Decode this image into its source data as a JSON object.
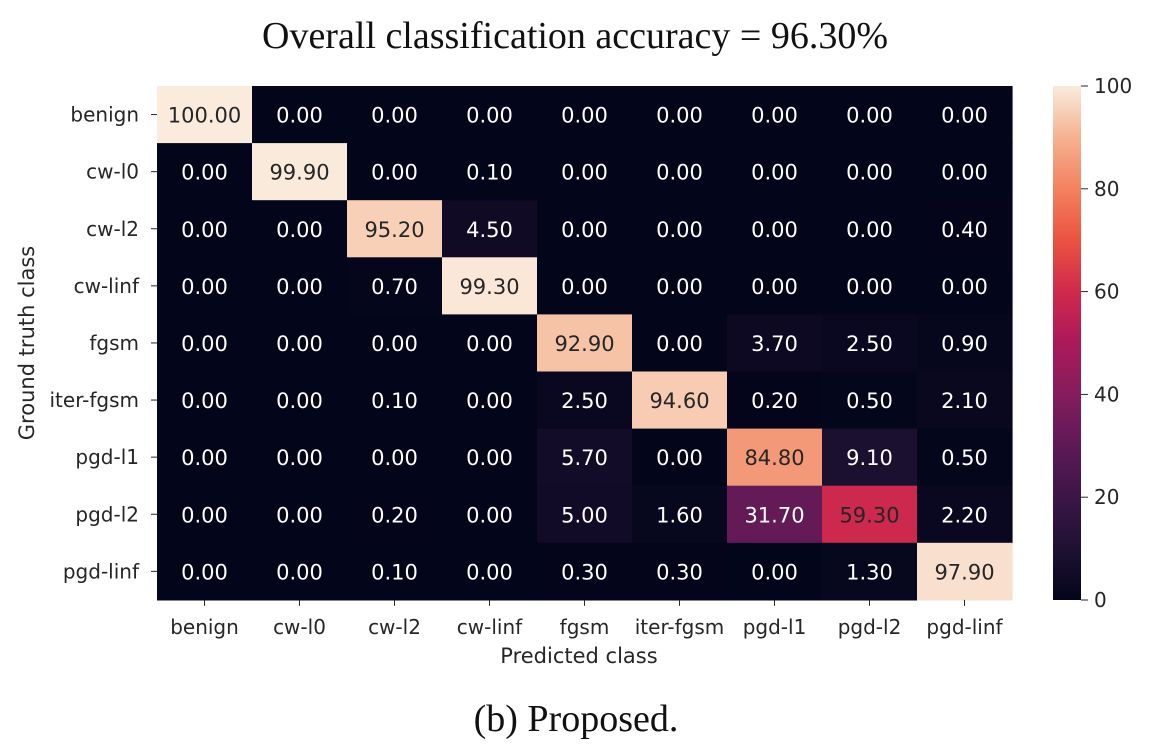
{
  "chart_data": {
    "type": "heatmap",
    "title": "Overall classification accuracy = 96.30%",
    "caption": "(b) Proposed.",
    "xlabel": "Predicted class",
    "ylabel": "Ground truth class",
    "x_categories": [
      "benign",
      "cw-l0",
      "cw-l2",
      "cw-linf",
      "fgsm",
      "iter-fgsm",
      "pgd-l1",
      "pgd-l2",
      "pgd-linf"
    ],
    "y_categories": [
      "benign",
      "cw-l0",
      "cw-l2",
      "cw-linf",
      "fgsm",
      "iter-fgsm",
      "pgd-l1",
      "pgd-l2",
      "pgd-linf"
    ],
    "values": [
      [
        100.0,
        0.0,
        0.0,
        0.0,
        0.0,
        0.0,
        0.0,
        0.0,
        0.0
      ],
      [
        0.0,
        99.9,
        0.0,
        0.1,
        0.0,
        0.0,
        0.0,
        0.0,
        0.0
      ],
      [
        0.0,
        0.0,
        95.2,
        4.5,
        0.0,
        0.0,
        0.0,
        0.0,
        0.4
      ],
      [
        0.0,
        0.0,
        0.7,
        99.3,
        0.0,
        0.0,
        0.0,
        0.0,
        0.0
      ],
      [
        0.0,
        0.0,
        0.0,
        0.0,
        92.9,
        0.0,
        3.7,
        2.5,
        0.9
      ],
      [
        0.0,
        0.0,
        0.1,
        0.0,
        2.5,
        94.6,
        0.2,
        0.5,
        2.1
      ],
      [
        0.0,
        0.0,
        0.0,
        0.0,
        5.7,
        0.0,
        84.8,
        9.1,
        0.5
      ],
      [
        0.0,
        0.0,
        0.2,
        0.0,
        5.0,
        1.6,
        31.7,
        59.3,
        2.2
      ],
      [
        0.0,
        0.0,
        0.1,
        0.0,
        0.3,
        0.3,
        0.0,
        1.3,
        97.9
      ]
    ],
    "value_format_decimals": 2,
    "colorbar": {
      "min": 0,
      "max": 100,
      "ticks": [
        0,
        20,
        40,
        60,
        80,
        100
      ]
    },
    "colormap": "rocket",
    "grid": false
  }
}
